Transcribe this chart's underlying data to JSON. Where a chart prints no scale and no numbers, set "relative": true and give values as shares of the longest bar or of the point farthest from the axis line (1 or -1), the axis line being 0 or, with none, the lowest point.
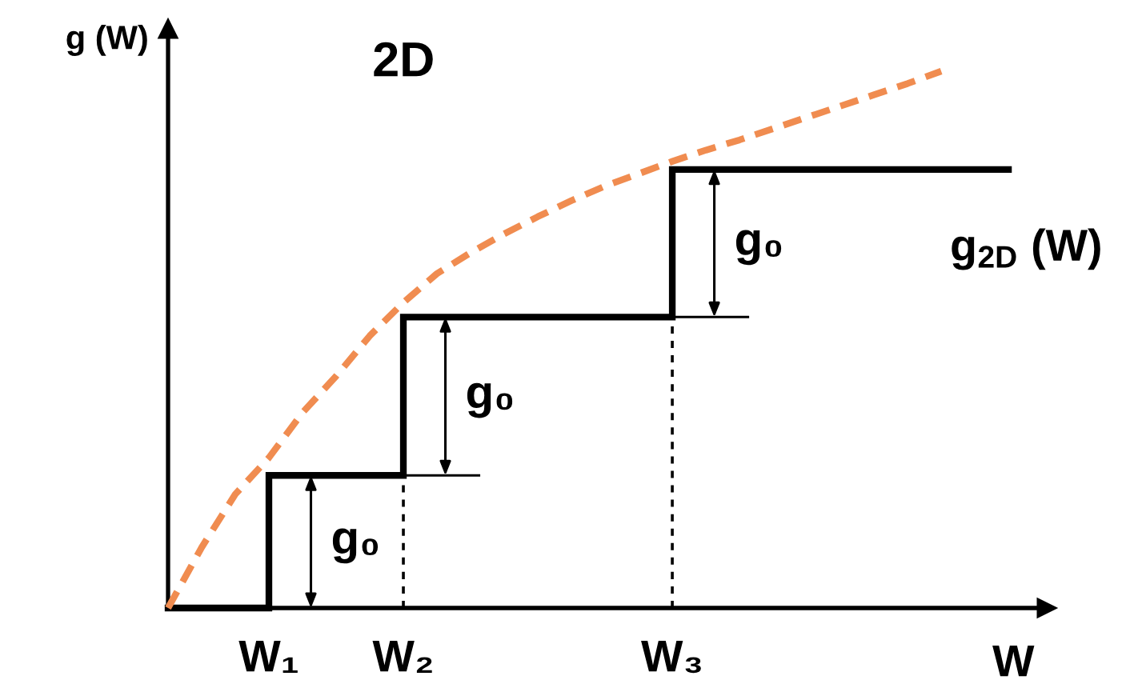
{
  "chart_data": {
    "type": "step",
    "title": "2D",
    "xlabel": "W",
    "ylabel": "g (W)",
    "relative": true,
    "categories": [
      null,
      null,
      null,
      "W₁",
      null,
      null,
      null,
      "W₂",
      null,
      null,
      null,
      null,
      null,
      null,
      null,
      "W₃",
      null,
      null,
      null,
      null,
      null,
      null,
      null,
      null,
      null,
      null
    ],
    "series": [
      {
        "name": "g$_{2D}$ (W)",
        "color": "#000000",
        "line_style": "solid",
        "values": [
          0,
          0,
          0,
          0.247,
          0.247,
          0.247,
          0.247,
          0.542,
          0.542,
          0.542,
          0.542,
          0.542,
          0.542,
          0.542,
          0.542,
          0.817,
          0.817,
          0.817,
          0.817,
          0.817,
          0.817,
          0.817,
          0.817,
          0.817,
          0.817,
          0.817
        ]
      },
      {
        "type": "line",
        "color": "#f08c50",
        "line_style": "dashed",
        "values": [
          0,
          0.113,
          0.212,
          0.28,
          0.364,
          0.432,
          0.507,
          0.569,
          0.623,
          0.662,
          0.697,
          0.729,
          0.759,
          0.786,
          0.809,
          0.832,
          0.853,
          0.872,
          0.893,
          0.914,
          0.935,
          0.956,
          0.977,
          1.0,
          null,
          null
        ]
      }
    ],
    "ref_lines": [
      {
        "axis": "x",
        "value": "W₂",
        "color": "#000000",
        "line_style": "dotted"
      },
      {
        "axis": "x",
        "value": "W₃",
        "color": "#000000",
        "line_style": "dotted"
      }
    ],
    "annotations": [
      "g₀",
      "g₀",
      "g₀"
    ]
  }
}
